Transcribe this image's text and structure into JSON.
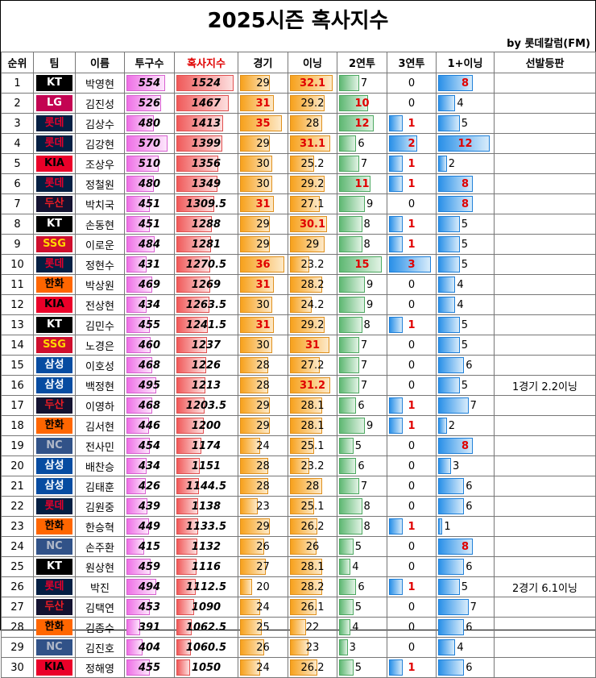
{
  "title": "2025시즌 혹사지수",
  "byline": "by 롯데칼럼(FM)",
  "headers": {
    "rank": "순위",
    "team": "팀",
    "name": "이름",
    "pitches": "투구수",
    "index": "혹사지수",
    "games": "경기",
    "innings": "이닝",
    "consec2": "2연투",
    "consec3": "3연투",
    "one_plus": "1+이닝",
    "starts": "선발등판"
  },
  "teams": {
    "KT": {
      "bg": "#000000",
      "fg": "#ffffff"
    },
    "LG": {
      "bg": "#c30452",
      "fg": "#ffffff"
    },
    "롯데": {
      "bg": "#041e42",
      "fg": "#e4002b"
    },
    "KIA": {
      "bg": "#ea0029",
      "fg": "#000000"
    },
    "두산": {
      "bg": "#131230",
      "fg": "#ed1c24"
    },
    "SSG": {
      "bg": "#ce0e2d",
      "fg": "#ffd600"
    },
    "한화": {
      "bg": "#ff6600",
      "fg": "#000000"
    },
    "삼성": {
      "bg": "#074ca1",
      "fg": "#ffffff"
    },
    "NC": {
      "bg": "#315288",
      "fg": "#b0b8c8"
    }
  },
  "rows": [
    {
      "rank": "1",
      "team": "KT",
      "name": "박영현",
      "pitches": "554",
      "index": "1524",
      "games": "29",
      "innings": "32.1",
      "c2": "7",
      "c3": "0",
      "one": "8",
      "starts": "",
      "g_red": false,
      "i_red": true,
      "c2_red": false,
      "c3_red": false,
      "one_red": true
    },
    {
      "rank": "2",
      "team": "LG",
      "name": "김진성",
      "pitches": "526",
      "index": "1467",
      "games": "31",
      "innings": "29.2",
      "c2": "10",
      "c3": "0",
      "one": "4",
      "starts": "",
      "g_red": true,
      "i_red": false,
      "c2_red": true,
      "c3_red": false,
      "one_red": false
    },
    {
      "rank": "3",
      "team": "롯데",
      "name": "김상수",
      "pitches": "480",
      "index": "1413",
      "games": "35",
      "innings": "28",
      "c2": "12",
      "c3": "1",
      "one": "5",
      "starts": "",
      "g_red": true,
      "i_red": false,
      "c2_red": true,
      "c3_red": true,
      "one_red": false
    },
    {
      "rank": "4",
      "team": "롯데",
      "name": "김강현",
      "pitches": "570",
      "index": "1399",
      "games": "29",
      "innings": "31.1",
      "c2": "6",
      "c3": "2",
      "one": "12",
      "starts": "",
      "g_red": false,
      "i_red": true,
      "c2_red": false,
      "c3_red": true,
      "one_red": true
    },
    {
      "rank": "5",
      "team": "KIA",
      "name": "조상우",
      "pitches": "510",
      "index": "1356",
      "games": "30",
      "innings": "25.2",
      "c2": "7",
      "c3": "1",
      "one": "2",
      "starts": "",
      "g_red": false,
      "i_red": false,
      "c2_red": false,
      "c3_red": true,
      "one_red": false
    },
    {
      "rank": "6",
      "team": "롯데",
      "name": "정철원",
      "pitches": "480",
      "index": "1349",
      "games": "30",
      "innings": "29.2",
      "c2": "11",
      "c3": "1",
      "one": "8",
      "starts": "",
      "g_red": false,
      "i_red": false,
      "c2_red": true,
      "c3_red": true,
      "one_red": true
    },
    {
      "rank": "7",
      "team": "두산",
      "name": "박치국",
      "pitches": "451",
      "index": "1309.5",
      "games": "31",
      "innings": "27.1",
      "c2": "9",
      "c3": "0",
      "one": "8",
      "starts": "",
      "g_red": true,
      "i_red": false,
      "c2_red": false,
      "c3_red": false,
      "one_red": true
    },
    {
      "rank": "8",
      "team": "KT",
      "name": "손동현",
      "pitches": "451",
      "index": "1288",
      "games": "29",
      "innings": "30.1",
      "c2": "8",
      "c3": "1",
      "one": "5",
      "starts": "",
      "g_red": false,
      "i_red": true,
      "c2_red": false,
      "c3_red": true,
      "one_red": false
    },
    {
      "rank": "9",
      "team": "SSG",
      "name": "이로운",
      "pitches": "484",
      "index": "1281",
      "games": "29",
      "innings": "29",
      "c2": "8",
      "c3": "1",
      "one": "5",
      "starts": "",
      "g_red": false,
      "i_red": false,
      "c2_red": false,
      "c3_red": true,
      "one_red": false
    },
    {
      "rank": "10",
      "team": "롯데",
      "name": "정현수",
      "pitches": "431",
      "index": "1270.5",
      "games": "36",
      "innings": "23.2",
      "c2": "15",
      "c3": "3",
      "one": "5",
      "starts": "",
      "g_red": true,
      "i_red": false,
      "c2_red": true,
      "c3_red": true,
      "one_red": false
    },
    {
      "rank": "11",
      "team": "한화",
      "name": "박상원",
      "pitches": "469",
      "index": "1269",
      "games": "31",
      "innings": "28.2",
      "c2": "9",
      "c3": "0",
      "one": "4",
      "starts": "",
      "g_red": true,
      "i_red": false,
      "c2_red": false,
      "c3_red": false,
      "one_red": false
    },
    {
      "rank": "12",
      "team": "KIA",
      "name": "전상현",
      "pitches": "434",
      "index": "1263.5",
      "games": "30",
      "innings": "24.2",
      "c2": "9",
      "c3": "0",
      "one": "4",
      "starts": "",
      "g_red": false,
      "i_red": false,
      "c2_red": false,
      "c3_red": false,
      "one_red": false
    },
    {
      "rank": "13",
      "team": "KT",
      "name": "김민수",
      "pitches": "455",
      "index": "1241.5",
      "games": "31",
      "innings": "29.2",
      "c2": "8",
      "c3": "1",
      "one": "5",
      "starts": "",
      "g_red": true,
      "i_red": false,
      "c2_red": false,
      "c3_red": true,
      "one_red": false
    },
    {
      "rank": "14",
      "team": "SSG",
      "name": "노경은",
      "pitches": "460",
      "index": "1237",
      "games": "30",
      "innings": "31",
      "c2": "7",
      "c3": "0",
      "one": "5",
      "starts": "",
      "g_red": false,
      "i_red": true,
      "c2_red": false,
      "c3_red": false,
      "one_red": false
    },
    {
      "rank": "15",
      "team": "삼성",
      "name": "이호성",
      "pitches": "468",
      "index": "1226",
      "games": "28",
      "innings": "27.2",
      "c2": "7",
      "c3": "0",
      "one": "6",
      "starts": "",
      "g_red": false,
      "i_red": false,
      "c2_red": false,
      "c3_red": false,
      "one_red": false
    },
    {
      "rank": "16",
      "team": "삼성",
      "name": "백정현",
      "pitches": "495",
      "index": "1213",
      "games": "28",
      "innings": "31.2",
      "c2": "7",
      "c3": "0",
      "one": "5",
      "starts": "1경기 2.2이닝",
      "g_red": false,
      "i_red": true,
      "c2_red": false,
      "c3_red": false,
      "one_red": false
    },
    {
      "rank": "17",
      "team": "두산",
      "name": "이영하",
      "pitches": "468",
      "index": "1203.5",
      "games": "29",
      "innings": "28.1",
      "c2": "6",
      "c3": "1",
      "one": "7",
      "starts": "",
      "g_red": false,
      "i_red": false,
      "c2_red": false,
      "c3_red": true,
      "one_red": false
    },
    {
      "rank": "18",
      "team": "한화",
      "name": "김서현",
      "pitches": "446",
      "index": "1200",
      "games": "29",
      "innings": "28.1",
      "c2": "9",
      "c3": "1",
      "one": "2",
      "starts": "",
      "g_red": false,
      "i_red": false,
      "c2_red": false,
      "c3_red": true,
      "one_red": false
    },
    {
      "rank": "19",
      "team": "NC",
      "name": "전사민",
      "pitches": "454",
      "index": "1174",
      "games": "24",
      "innings": "25.1",
      "c2": "5",
      "c3": "0",
      "one": "8",
      "starts": "",
      "g_red": false,
      "i_red": false,
      "c2_red": false,
      "c3_red": false,
      "one_red": true
    },
    {
      "rank": "20",
      "team": "삼성",
      "name": "배찬승",
      "pitches": "434",
      "index": "1151",
      "games": "28",
      "innings": "23.2",
      "c2": "6",
      "c3": "0",
      "one": "3",
      "starts": "",
      "g_red": false,
      "i_red": false,
      "c2_red": false,
      "c3_red": false,
      "one_red": false
    },
    {
      "rank": "21",
      "team": "삼성",
      "name": "김태훈",
      "pitches": "426",
      "index": "1144.5",
      "games": "28",
      "innings": "28",
      "c2": "7",
      "c3": "0",
      "one": "6",
      "starts": "",
      "g_red": false,
      "i_red": false,
      "c2_red": false,
      "c3_red": false,
      "one_red": false
    },
    {
      "rank": "22",
      "team": "롯데",
      "name": "김원중",
      "pitches": "439",
      "index": "1138",
      "games": "23",
      "innings": "25.1",
      "c2": "8",
      "c3": "0",
      "one": "6",
      "starts": "",
      "g_red": false,
      "i_red": false,
      "c2_red": false,
      "c3_red": false,
      "one_red": false
    },
    {
      "rank": "23",
      "team": "한화",
      "name": "한승혁",
      "pitches": "449",
      "index": "1133.5",
      "games": "29",
      "innings": "26.2",
      "c2": "8",
      "c3": "1",
      "one": "1",
      "starts": "",
      "g_red": false,
      "i_red": false,
      "c2_red": false,
      "c3_red": true,
      "one_red": false
    },
    {
      "rank": "24",
      "team": "NC",
      "name": "손주환",
      "pitches": "415",
      "index": "1132",
      "games": "26",
      "innings": "26",
      "c2": "5",
      "c3": "0",
      "one": "8",
      "starts": "",
      "g_red": false,
      "i_red": false,
      "c2_red": false,
      "c3_red": false,
      "one_red": true
    },
    {
      "rank": "25",
      "team": "KT",
      "name": "원상현",
      "pitches": "459",
      "index": "1116",
      "games": "27",
      "innings": "28.1",
      "c2": "4",
      "c3": "0",
      "one": "6",
      "starts": "",
      "g_red": false,
      "i_red": false,
      "c2_red": false,
      "c3_red": false,
      "one_red": false
    },
    {
      "rank": "26",
      "team": "롯데",
      "name": "박진",
      "pitches": "494",
      "index": "1112.5",
      "games": "20",
      "innings": "28.2",
      "c2": "6",
      "c3": "1",
      "one": "5",
      "starts": "2경기 6.1이닝",
      "g_red": false,
      "i_red": false,
      "c2_red": false,
      "c3_red": true,
      "one_red": false
    },
    {
      "rank": "27",
      "team": "두산",
      "name": "김택연",
      "pitches": "453",
      "index": "1090",
      "games": "24",
      "innings": "26.1",
      "c2": "5",
      "c3": "0",
      "one": "7",
      "starts": "",
      "g_red": false,
      "i_red": false,
      "c2_red": false,
      "c3_red": false,
      "one_red": false
    },
    {
      "rank": "28",
      "team": "한화",
      "name": "김종수",
      "pitches": "391",
      "index": "1062.5",
      "games": "25",
      "innings": "22",
      "c2": "4",
      "c3": "0",
      "one": "6",
      "starts": "",
      "g_red": false,
      "i_red": false,
      "c2_red": false,
      "c3_red": false,
      "one_red": false
    },
    {
      "rank": "29",
      "team": "NC",
      "name": "김진호",
      "pitches": "404",
      "index": "1060.5",
      "games": "26",
      "innings": "23",
      "c2": "3",
      "c3": "0",
      "one": "4",
      "starts": "",
      "g_red": false,
      "i_red": false,
      "c2_red": false,
      "c3_red": false,
      "one_red": false
    },
    {
      "rank": "30",
      "team": "KIA",
      "name": "정해영",
      "pitches": "455",
      "index": "1050",
      "games": "24",
      "innings": "26.2",
      "c2": "5",
      "c3": "1",
      "one": "6",
      "starts": "",
      "g_red": false,
      "i_red": false,
      "c2_red": false,
      "c3_red": true,
      "one_red": false
    }
  ]
}
